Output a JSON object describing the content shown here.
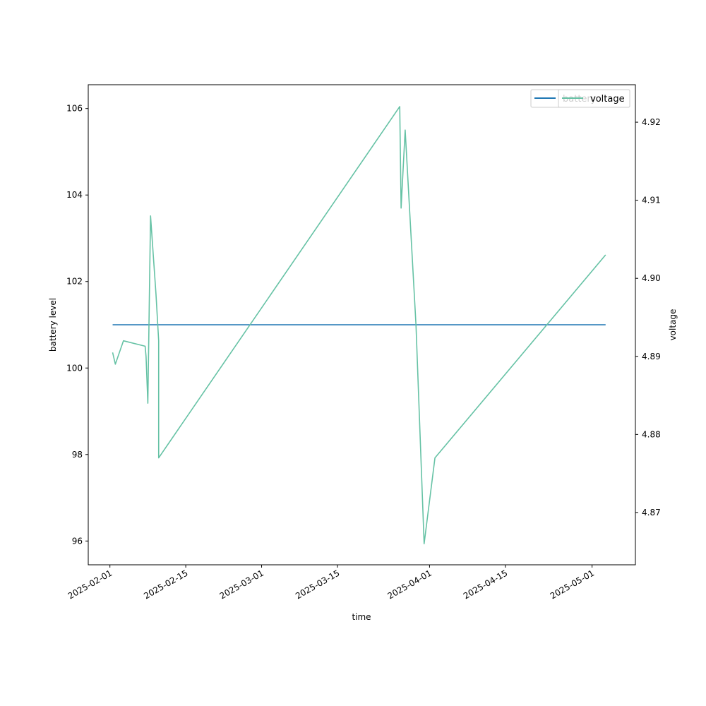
{
  "chart_data": {
    "type": "line",
    "title": "",
    "xlabel": "time",
    "ylabel_left": "battery level",
    "ylabel_right": "voltage",
    "x_tick_labels": [
      "2025-02-01",
      "2025-02-15",
      "2025-03-01",
      "2025-03-15",
      "2025-04-01",
      "2025-04-15",
      "2025-05-01"
    ],
    "x_tick_dates": [
      "2025-02-01",
      "2025-02-15",
      "2025-03-01",
      "2025-03-15",
      "2025-04-01",
      "2025-04-15",
      "2025-05-01"
    ],
    "xlim": [
      "2025-01-28",
      "2025-05-09"
    ],
    "ylim_left": [
      95.45,
      106.55
    ],
    "ylim_right": [
      4.8633,
      4.9248
    ],
    "left_ticks": [
      {
        "value": 96,
        "label": "96"
      },
      {
        "value": 98,
        "label": "98"
      },
      {
        "value": 100,
        "label": "100"
      },
      {
        "value": 102,
        "label": "102"
      },
      {
        "value": 104,
        "label": "104"
      },
      {
        "value": 106,
        "label": "106"
      }
    ],
    "right_ticks": [
      {
        "value": 4.87,
        "label": "4.87"
      },
      {
        "value": 4.88,
        "label": "4.88"
      },
      {
        "value": 4.89,
        "label": "4.89"
      },
      {
        "value": 4.9,
        "label": "4.90"
      },
      {
        "value": 4.91,
        "label": "4.91"
      },
      {
        "value": 4.92,
        "label": "4.92"
      }
    ],
    "legend_position": "upper-right",
    "grid": false,
    "series": [
      {
        "name": "battery",
        "axis": "left",
        "color": "#1f77b4",
        "points": [
          {
            "x": "2025-02-01T12:00",
            "y": 101
          },
          {
            "x": "2025-05-03T12:00",
            "y": 101
          }
        ]
      },
      {
        "name": "voltage",
        "axis": "right",
        "color": "#66c2a5",
        "points": [
          {
            "x": "2025-02-01T12:00",
            "y": 4.8905
          },
          {
            "x": "2025-02-02T00:00",
            "y": 4.889
          },
          {
            "x": "2025-02-03T12:00",
            "y": 4.892
          },
          {
            "x": "2025-02-07T12:00",
            "y": 4.8913
          },
          {
            "x": "2025-02-07T16:00",
            "y": 4.89
          },
          {
            "x": "2025-02-08T00:00",
            "y": 4.884
          },
          {
            "x": "2025-02-08T06:00",
            "y": 4.896
          },
          {
            "x": "2025-02-08T12:00",
            "y": 4.908
          },
          {
            "x": "2025-02-09T12:00",
            "y": 4.898
          },
          {
            "x": "2025-02-10T00:00",
            "y": 4.892
          },
          {
            "x": "2025-02-10T00:00",
            "y": 4.877
          },
          {
            "x": "2025-03-26T12:00",
            "y": 4.922
          },
          {
            "x": "2025-03-26T18:00",
            "y": 4.909
          },
          {
            "x": "2025-03-27T12:00",
            "y": 4.919
          },
          {
            "x": "2025-03-29T12:00",
            "y": 4.894
          },
          {
            "x": "2025-03-31T00:00",
            "y": 4.866
          },
          {
            "x": "2025-04-02T00:00",
            "y": 4.877
          },
          {
            "x": "2025-05-03T12:00",
            "y": 4.903
          }
        ]
      }
    ]
  }
}
